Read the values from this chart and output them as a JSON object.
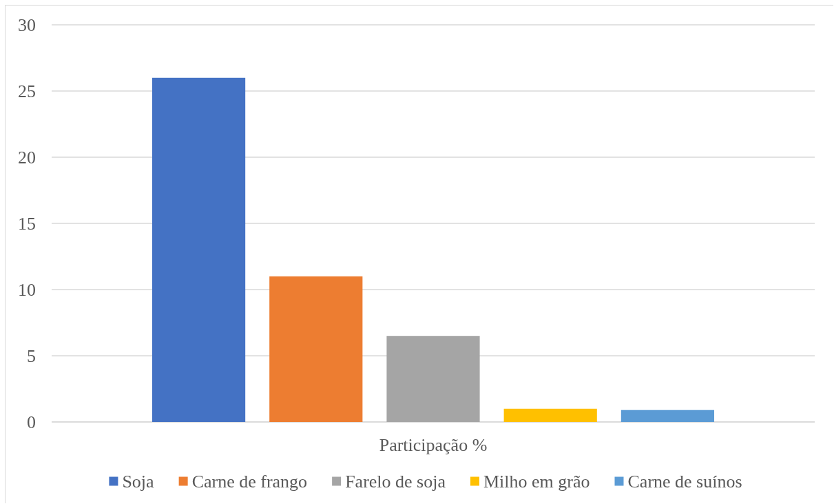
{
  "chart_data": {
    "type": "bar",
    "categories": [
      "Participação %"
    ],
    "series": [
      {
        "name": "Soja",
        "color": "#4472c4",
        "values": [
          26
        ]
      },
      {
        "name": "Carne de frango",
        "color": "#ed7d31",
        "values": [
          11
        ]
      },
      {
        "name": "Farelo de soja",
        "color": "#a5a5a5",
        "values": [
          6.5
        ]
      },
      {
        "name": "Milho em grão",
        "color": "#ffc000",
        "values": [
          1
        ]
      },
      {
        "name": "Carne de suínos",
        "color": "#5b9bd5",
        "values": [
          0.9
        ]
      }
    ],
    "ylim": [
      0,
      30
    ],
    "yticks": [
      0,
      5,
      10,
      15,
      20,
      25,
      30
    ],
    "grid": "y",
    "legend": "bottom"
  }
}
